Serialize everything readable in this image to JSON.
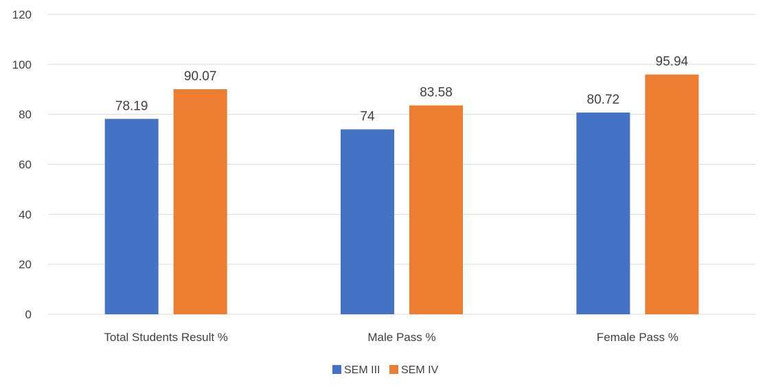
{
  "chart_data": {
    "type": "bar",
    "categories": [
      "Total Students Result %",
      "Male Pass %",
      "Female Pass %"
    ],
    "series": [
      {
        "name": "SEM III",
        "values": [
          78.19,
          74,
          80.72
        ],
        "labels": [
          "78.19",
          "74",
          "80.72"
        ],
        "color": "#4472C4"
      },
      {
        "name": "SEM IV",
        "values": [
          90.07,
          83.58,
          95.94
        ],
        "labels": [
          "90.07",
          "83.58",
          "95.94"
        ],
        "color": "#ED7D31"
      }
    ],
    "ylim": [
      0,
      120
    ],
    "yticks": [
      0,
      20,
      40,
      60,
      80,
      100,
      120
    ],
    "ytick_labels": [
      "0",
      "20",
      "40",
      "60",
      "80",
      "100",
      "120"
    ],
    "grid": true,
    "gridline_color": "#D9D9D9",
    "legend_position": "bottom",
    "title": "",
    "xlabel": "",
    "ylabel": ""
  }
}
